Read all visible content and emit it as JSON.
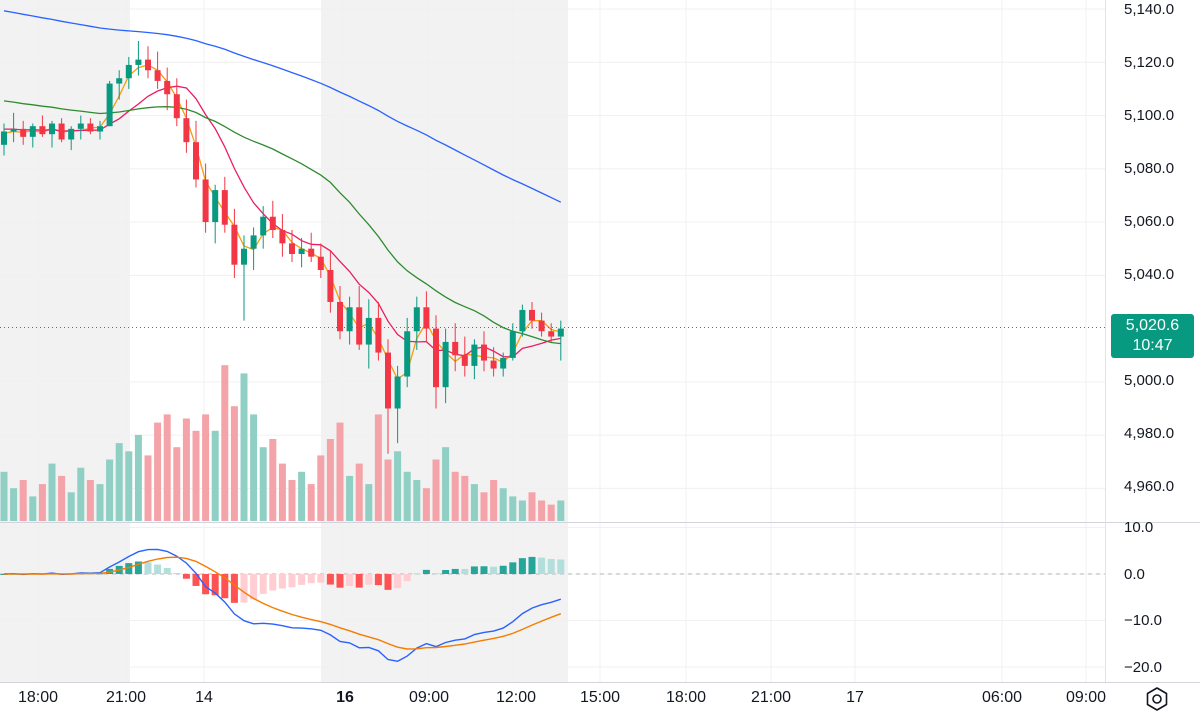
{
  "chart_data": [
    {
      "type": "candlestick",
      "panel": "price",
      "price_axis": {
        "ticks": [
          "5,140.0",
          "5,120.0",
          "5,100.0",
          "5,080.0",
          "5,060.0",
          "5,040.0",
          "5,000.0",
          "4,980.0",
          "4,960.0"
        ],
        "ylim": [
          4950,
          5143
        ]
      },
      "last_price": {
        "value": "5,020.6",
        "countdown": "10:47",
        "color": "#089981"
      },
      "colors": {
        "up": "#089981",
        "down": "#f23645",
        "ma_fast": "#f59e0b",
        "ma_mid": "#e91e63",
        "ma_slow": "#2e8b2e",
        "ma_long": "#2962ff",
        "vol_up": "#8fcfc4",
        "vol_down": "#f4a3a8",
        "session_shade": "#f2f2f2",
        "grid": "#f0f0f0"
      },
      "candles": [
        [
          5089,
          5097,
          5085,
          5094
        ],
        [
          5094,
          5101,
          5090,
          5095
        ],
        [
          5095,
          5098,
          5089,
          5092
        ],
        [
          5092,
          5097,
          5088,
          5096
        ],
        [
          5096,
          5100,
          5092,
          5093
        ],
        [
          5093,
          5098,
          5088,
          5097
        ],
        [
          5097,
          5099,
          5090,
          5091
        ],
        [
          5091,
          5096,
          5087,
          5095
        ],
        [
          5095,
          5100,
          5091,
          5097
        ],
        [
          5097,
          5099,
          5093,
          5094
        ],
        [
          5094,
          5098,
          5091,
          5096
        ],
        [
          5096,
          5113,
          5096,
          5112
        ],
        [
          5112,
          5117,
          5106,
          5114
        ],
        [
          5114,
          5122,
          5110,
          5119
        ],
        [
          5119,
          5128,
          5115,
          5121
        ],
        [
          5121,
          5126,
          5114,
          5117
        ],
        [
          5117,
          5124,
          5110,
          5113
        ],
        [
          5113,
          5118,
          5102,
          5108
        ],
        [
          5108,
          5114,
          5096,
          5099
        ],
        [
          5099,
          5106,
          5086,
          5090
        ],
        [
          5090,
          5098,
          5073,
          5076
        ],
        [
          5076,
          5082,
          5056,
          5060
        ],
        [
          5060,
          5074,
          5052,
          5072
        ],
        [
          5072,
          5077,
          5056,
          5059
        ],
        [
          5059,
          5065,
          5039,
          5044
        ],
        [
          5044,
          5055,
          5023,
          5050
        ],
        [
          5050,
          5058,
          5042,
          5055
        ],
        [
          5055,
          5066,
          5050,
          5062
        ],
        [
          5062,
          5068,
          5054,
          5057
        ],
        [
          5057,
          5063,
          5047,
          5052
        ],
        [
          5052,
          5057,
          5045,
          5048
        ],
        [
          5048,
          5054,
          5043,
          5050
        ],
        [
          5050,
          5056,
          5045,
          5047
        ],
        [
          5047,
          5052,
          5039,
          5042
        ],
        [
          5042,
          5049,
          5026,
          5030
        ],
        [
          5030,
          5036,
          5016,
          5019
        ],
        [
          5019,
          5032,
          5014,
          5028
        ],
        [
          5028,
          5036,
          5012,
          5014
        ],
        [
          5014,
          5031,
          5005,
          5024
        ],
        [
          5024,
          5030,
          5008,
          5011
        ],
        [
          5011,
          5016,
          4973,
          4990
        ],
        [
          4990,
          5006,
          4977,
          5002
        ],
        [
          5002,
          5024,
          4998,
          5019
        ],
        [
          5019,
          5032,
          5012,
          5028
        ],
        [
          5028,
          5034,
          5015,
          5020
        ],
        [
          5020,
          5025,
          4990,
          4998
        ],
        [
          4998,
          5020,
          4992,
          5015
        ],
        [
          5015,
          5022,
          5004,
          5010
        ],
        [
          5010,
          5017,
          5002,
          5006
        ],
        [
          5006,
          5016,
          5001,
          5014
        ],
        [
          5014,
          5019,
          5004,
          5008
        ],
        [
          5008,
          5013,
          5002,
          5005
        ],
        [
          5005,
          5011,
          5002,
          5009
        ],
        [
          5009,
          5022,
          5008,
          5019
        ],
        [
          5019,
          5029,
          5017,
          5027
        ],
        [
          5027,
          5030,
          5020,
          5023
        ],
        [
          5023,
          5026,
          5017,
          5019
        ],
        [
          5019,
          5022,
          5015,
          5017
        ],
        [
          5017,
          5023,
          5008,
          5020
        ]
      ],
      "volume": [
        12,
        8,
        10,
        6,
        9,
        14,
        11,
        7,
        13,
        10,
        9,
        15,
        19,
        17,
        21,
        16,
        24,
        26,
        18,
        25,
        22,
        26,
        22,
        38,
        28,
        36,
        26,
        18,
        20,
        14,
        10,
        12,
        9,
        16,
        20,
        24,
        11,
        14,
        9,
        26,
        15,
        17,
        12,
        10,
        8,
        15,
        18,
        12,
        11,
        9,
        7,
        10,
        8,
        6,
        5,
        7,
        5,
        4,
        5
      ]
    },
    {
      "type": "macd",
      "panel": "oscillator",
      "axis_ticks": [
        "10.0",
        "0.0",
        "−10.0",
        "−20.0"
      ],
      "ylim": [
        -21,
        11
      ],
      "macd_color": "#2962ff",
      "signal_color": "#f57c00"
    }
  ],
  "time_axis": {
    "labels": [
      {
        "text": "18:00",
        "bold": false
      },
      {
        "text": "21:00",
        "bold": false
      },
      {
        "text": "14",
        "bold": false
      },
      {
        "text": "16",
        "bold": true
      },
      {
        "text": "09:00",
        "bold": false
      },
      {
        "text": "12:00",
        "bold": false
      },
      {
        "text": "15:00",
        "bold": false
      },
      {
        "text": "18:00",
        "bold": false
      },
      {
        "text": "21:00",
        "bold": false
      },
      {
        "text": "17",
        "bold": false
      },
      {
        "text": "06:00",
        "bold": false
      },
      {
        "text": "09:00",
        "bold": false
      }
    ]
  },
  "toolbar": {
    "settings_icon": "settings-icon"
  }
}
